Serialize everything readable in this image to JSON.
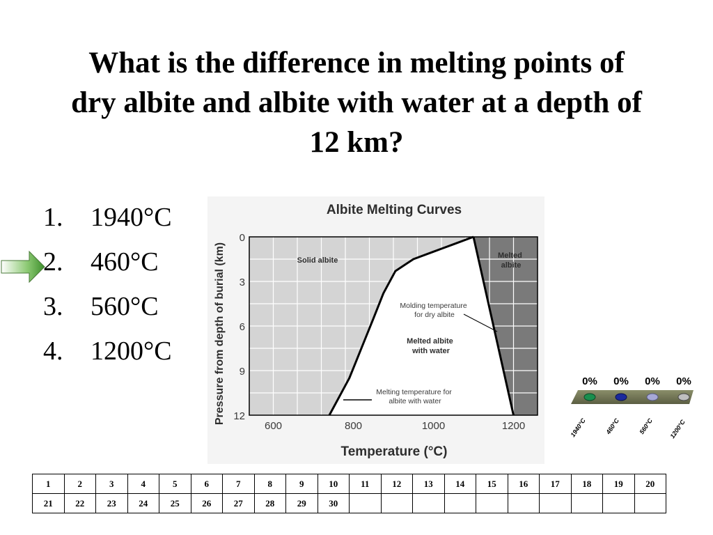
{
  "slide": {
    "title_lines": [
      "What is the difference in melting points of",
      "dry albite and albite with water at a depth of",
      "12 km?"
    ]
  },
  "answers": [
    {
      "number": "1.",
      "text": "1940°C"
    },
    {
      "number": "2.",
      "text": "460°C"
    },
    {
      "number": "3.",
      "text": "560°C"
    },
    {
      "number": "4.",
      "text": "1200°C"
    }
  ],
  "colors": {
    "arrow": "#5aa843",
    "chart_background": "#d4d4d4",
    "melted_albite": "#7a7a7a",
    "melted_with_water": "#ffffff",
    "poll_dot_1": "#1a8f4e",
    "poll_dot_2": "#1b2a9c",
    "poll_dot_3": "#a6a8d6",
    "poll_dot_4": "#bfbfbf"
  },
  "chart_data": {
    "type": "line",
    "title": "Albite Melting Curves",
    "xlabel": "Temperature (°C)",
    "ylabel": "Pressure from depth of burial (km)",
    "xlim": [
      540,
      1260
    ],
    "ylim": [
      12,
      0
    ],
    "x_ticks": [
      600,
      800,
      1000,
      1200
    ],
    "y_ticks": [
      0,
      3,
      6,
      9,
      12
    ],
    "grid": true,
    "series": [
      {
        "label": "Melting temperature for albite with water",
        "points": [
          [
            740,
            12
          ],
          [
            760,
            11
          ],
          [
            790,
            9.5
          ],
          [
            820,
            7.5
          ],
          [
            850,
            5.5
          ],
          [
            875,
            3.8
          ],
          [
            905,
            2.3
          ],
          [
            950,
            1.5
          ],
          [
            1000,
            1.0
          ],
          [
            1050,
            0.5
          ],
          [
            1100,
            0
          ]
        ]
      },
      {
        "label": "Molding temperature for dry albite",
        "points": [
          [
            1100,
            0
          ],
          [
            1200,
            12
          ]
        ]
      }
    ],
    "regions": [
      "Solid albite",
      "Melted albite",
      "Melted albite with water"
    ],
    "annotations": [
      "Solid albite",
      "Melted albite",
      "Molding temperature for dry albite",
      "Melted albite with water",
      "Melting temperature for albite with water"
    ]
  },
  "poll": {
    "percents": [
      "0%",
      "0%",
      "0%",
      "0%"
    ],
    "labels": [
      "1940°C",
      "460°C",
      "560°C",
      "1200°C"
    ]
  },
  "grid": {
    "rows": [
      [
        "1",
        "2",
        "3",
        "4",
        "5",
        "6",
        "7",
        "8",
        "9",
        "10",
        "11",
        "12",
        "13",
        "14",
        "15",
        "16",
        "17",
        "18",
        "19",
        "20"
      ],
      [
        "21",
        "22",
        "23",
        "24",
        "25",
        "26",
        "27",
        "28",
        "29",
        "30",
        "",
        "",
        "",
        "",
        "",
        "",
        "",
        "",
        "",
        ""
      ]
    ]
  }
}
